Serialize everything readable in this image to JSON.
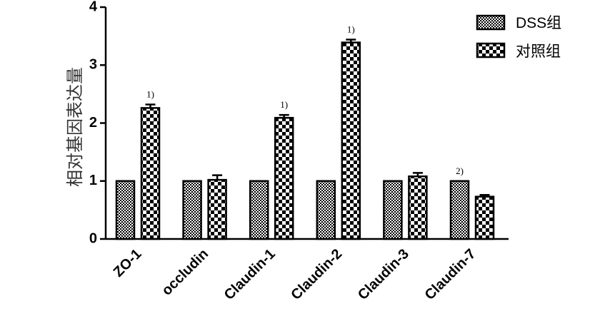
{
  "chart_data": {
    "type": "bar",
    "title": "",
    "xlabel": "",
    "ylabel": "相对基因表达量",
    "ylim": [
      0,
      4
    ],
    "yticks": [
      "0",
      "1",
      "2",
      "3",
      "4"
    ],
    "categories": [
      "ZO-1",
      "occludin",
      "Claudin-1",
      "Claudin-2",
      "Claudin-3",
      "Claudin-7"
    ],
    "series": [
      {
        "name": "DSS组",
        "values": [
          1.0,
          1.0,
          1.0,
          1.0,
          1.0,
          1.0
        ],
        "errors": [
          0,
          0,
          0,
          0,
          0,
          0
        ],
        "pattern": "fine-check"
      },
      {
        "name": "对照组",
        "values": [
          2.26,
          1.02,
          2.09,
          3.39,
          1.08,
          0.73
        ],
        "errors": [
          0.06,
          0.08,
          0.05,
          0.05,
          0.06,
          0.03
        ],
        "pattern": "coarse-check"
      }
    ],
    "annotations": [
      {
        "category": "ZO-1",
        "series": 1,
        "text": "1)"
      },
      {
        "category": "Claudin-1",
        "series": 1,
        "text": "1)"
      },
      {
        "category": "Claudin-2",
        "series": 1,
        "text": "1)"
      },
      {
        "category": "Claudin-7",
        "series": 0,
        "text": "2)"
      }
    ],
    "legend_position": "top-right",
    "grid": false,
    "colors": {
      "fg": "#000000",
      "bg": "#ffffff"
    }
  }
}
